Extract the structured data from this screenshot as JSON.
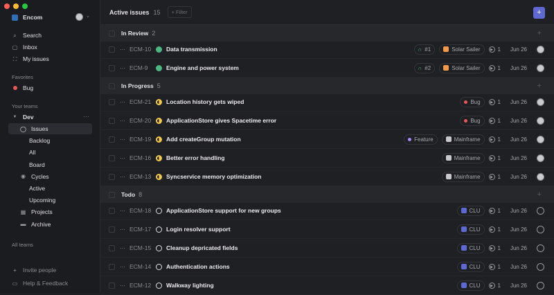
{
  "sidebar": {
    "workspace": "Encom",
    "nav": [
      {
        "label": "Search",
        "icon": "search-icon"
      },
      {
        "label": "Inbox",
        "icon": "inbox-icon"
      },
      {
        "label": "My issues",
        "icon": "my-issues-icon"
      }
    ],
    "favorites_label": "Favorites",
    "favorites": [
      {
        "label": "Bug",
        "color": "#eb5757"
      }
    ],
    "teams_label": "Your teams",
    "team": "Dev",
    "team_items": [
      {
        "label": "Issues",
        "sub": false,
        "icon": "issues-icon",
        "active": true
      },
      {
        "label": "Backlog",
        "sub": true
      },
      {
        "label": "All",
        "sub": true
      },
      {
        "label": "Board",
        "sub": true
      },
      {
        "label": "Cycles",
        "sub": false,
        "icon": "cycles-icon"
      },
      {
        "label": "Active",
        "sub": true
      },
      {
        "label": "Upcoming",
        "sub": true
      },
      {
        "label": "Projects",
        "sub": false,
        "icon": "projects-icon"
      },
      {
        "label": "Archive",
        "sub": false,
        "icon": "archive-icon"
      }
    ],
    "all_teams": "All teams",
    "invite": "Invite people",
    "help": "Help & Feedback"
  },
  "header": {
    "title": "Active issues",
    "count": "15",
    "filter": "+ Filter",
    "add": "+"
  },
  "groups": [
    {
      "name": "In Review",
      "count": "2",
      "status_color": "#4cb782",
      "issues": [
        {
          "id": "ECM-10",
          "title": "Data transmission",
          "pr": "#1",
          "project": "Solar Sailer",
          "project_color": "#f2994a",
          "cycle": "1",
          "date": "Jun 26"
        },
        {
          "id": "ECM-9",
          "title": "Engine and power system",
          "pr": "#2",
          "project": "Solar Sailer",
          "project_color": "#f2994a",
          "cycle": "1",
          "date": "Jun 26"
        }
      ]
    },
    {
      "name": "In Progress",
      "count": "5",
      "status_color": "#f2c94c",
      "issues": [
        {
          "id": "ECM-21",
          "title": "Location history gets wiped",
          "label": "Bug",
          "label_color": "#eb5757",
          "cycle": "1",
          "date": "Jun 26"
        },
        {
          "id": "ECM-20",
          "title": "ApplicationStore gives Spacetime error",
          "label": "Bug",
          "label_color": "#eb5757",
          "cycle": "1",
          "date": "Jun 26"
        },
        {
          "id": "ECM-19",
          "title": "Add createGroup mutation",
          "label": "Feature",
          "label_color": "#a78bfa",
          "project": "Mainframe",
          "project_color": "#c8c8cc",
          "cycle": "1",
          "date": "Jun 26"
        },
        {
          "id": "ECM-16",
          "title": "Better error handling",
          "project": "Mainframe",
          "project_color": "#c8c8cc",
          "cycle": "1",
          "date": "Jun 26"
        },
        {
          "id": "ECM-13",
          "title": "Syncservice memory optimization",
          "project": "Mainframe",
          "project_color": "#c8c8cc",
          "cycle": "1",
          "date": "Jun 26"
        }
      ]
    },
    {
      "name": "Todo",
      "count": "8",
      "status_color": "#e2e2e2",
      "issues": [
        {
          "id": "ECM-18",
          "title": "ApplicationStore support for new groups",
          "project": "CLU",
          "project_color": "#5e6ad2",
          "cycle": "1",
          "date": "Jun 26"
        },
        {
          "id": "ECM-17",
          "title": "Login resolver support",
          "project": "CLU",
          "project_color": "#5e6ad2",
          "cycle": "1",
          "date": "Jun 26"
        },
        {
          "id": "ECM-15",
          "title": "Cleanup depricated fields",
          "project": "CLU",
          "project_color": "#5e6ad2",
          "cycle": "1",
          "date": "Jun 26"
        },
        {
          "id": "ECM-14",
          "title": "Authentication actions",
          "project": "CLU",
          "project_color": "#5e6ad2",
          "cycle": "1",
          "date": "Jun 26"
        },
        {
          "id": "ECM-12",
          "title": "Walkway lighting",
          "project": "CLU",
          "project_color": "#5e6ad2",
          "cycle": "1",
          "date": "Jun 26"
        }
      ]
    }
  ]
}
